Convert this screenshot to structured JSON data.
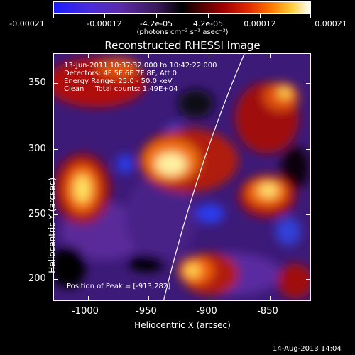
{
  "colorbar": {
    "tick_labels": [
      "-0.00021",
      "-0.00012",
      "-4.2e-05",
      "4.2e-05",
      "0.00012",
      "0.00021"
    ],
    "unit": "(photons cm⁻² s⁻¹ asec⁻²)",
    "colors": [
      "#1c1cff",
      "#5a2aa8",
      "#000000",
      "#a00000",
      "#ff7a00",
      "#ffffff"
    ]
  },
  "title": "Reconstructed RHESSI Image",
  "info": {
    "time_range": "13-Jun-2011 10:37:32.000 to 10:42:22.000",
    "detectors": "Detectors: 4F 5F 6F 7F 8F, Att 0",
    "energy": "Energy Range: 25.0 - 50.0 keV",
    "method": "Clean     Total counts: 1.49E+04",
    "peak": "Position of Peak = [-913,282]"
  },
  "axes": {
    "xlabel": "Heliocentric X (arcsec)",
    "ylabel": "Heliocentric Y (arcsec)",
    "xticks": [
      "-1000",
      "-950",
      "-900",
      "-850"
    ],
    "yticks": [
      "350",
      "300",
      "250",
      "200"
    ]
  },
  "timestamp": "14-Aug-2013 14:04"
}
